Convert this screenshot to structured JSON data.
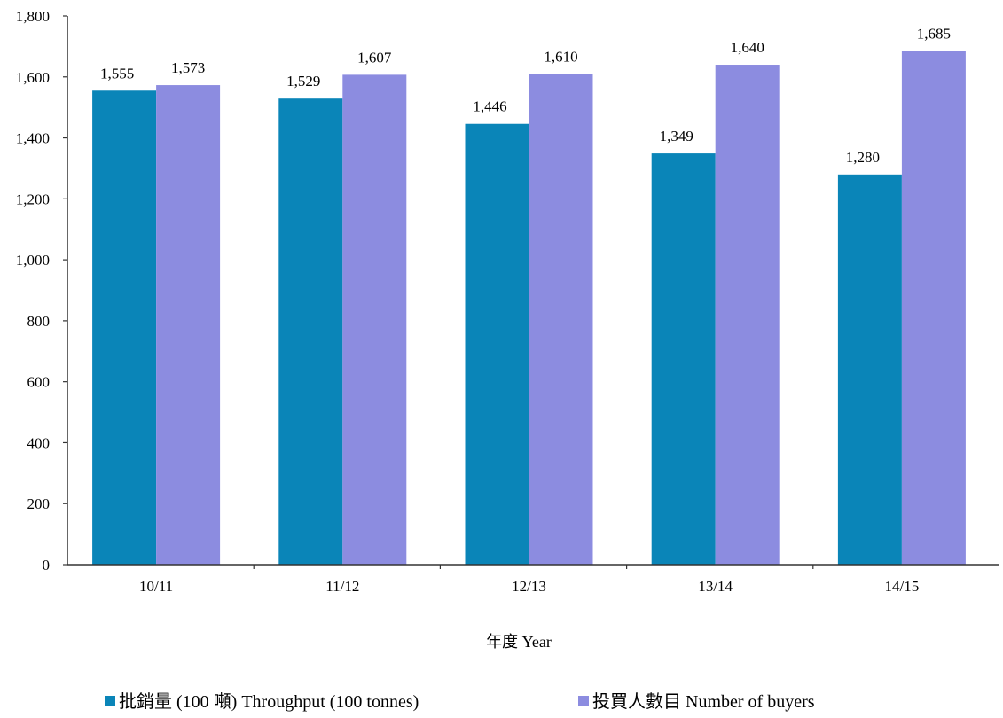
{
  "chart_data": {
    "type": "bar",
    "categories": [
      "10/11",
      "11/12",
      "12/13",
      "13/14",
      "14/15"
    ],
    "series": [
      {
        "name": "批銷量 (100 噸) Throughput (100 tonnes)",
        "color": "#0a85b8",
        "values": [
          1555,
          1529,
          1446,
          1349,
          1280
        ],
        "labels": [
          "1,555",
          "1,529",
          "1,446",
          "1,349",
          "1,280"
        ]
      },
      {
        "name": "投買人數目 Number of buyers",
        "color": "#8c8ce0",
        "values": [
          1573,
          1607,
          1610,
          1640,
          1685
        ],
        "labels": [
          "1,573",
          "1,607",
          "1,610",
          "1,640",
          "1,685"
        ]
      }
    ],
    "yticks": [
      "0",
      "200",
      "400",
      "600",
      "800",
      "1,000",
      "1,200",
      "1,400",
      "1,600",
      "1,800"
    ],
    "ylim": [
      0,
      1800
    ],
    "xlabel": "年度 Year",
    "ylabel": "",
    "title": "",
    "grid": false,
    "legend_position": "bottom"
  }
}
